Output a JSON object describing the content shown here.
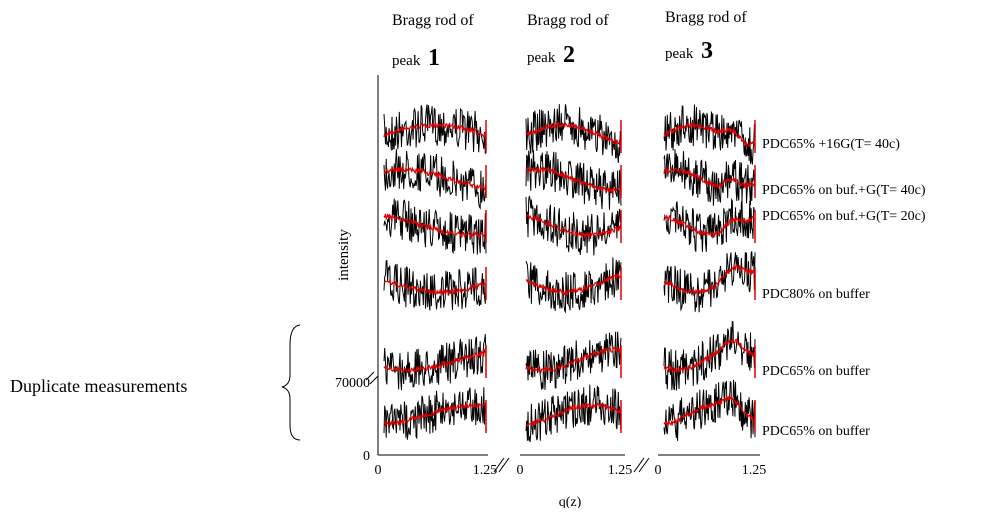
{
  "panels": [
    {
      "title": "Bragg rod of",
      "peak_label": "peak",
      "peak_number": "1",
      "xticks": [
        "0",
        "1.25"
      ]
    },
    {
      "title": "Bragg rod of",
      "peak_label": "peak",
      "peak_number": "2",
      "xticks": [
        "0",
        "1.25"
      ]
    },
    {
      "title": "Bragg rod of",
      "peak_label": "peak",
      "peak_number": "3",
      "xticks": [
        "0",
        "1.25"
      ]
    }
  ],
  "y_axis": {
    "label": "intensity",
    "ticks": [
      "0",
      "70000"
    ]
  },
  "x_axis": {
    "label": "q(z)"
  },
  "curve_labels": [
    "PDC65% +16G(T= 40c)",
    "PDC65% on buf.+G(T= 40c)",
    "PDC65% on buf.+G(T= 20c)",
    "PDC80% on buffer",
    "PDC65% on buffer",
    "PDC65% on buffer"
  ],
  "annotation": "Duplicate measurements"
}
